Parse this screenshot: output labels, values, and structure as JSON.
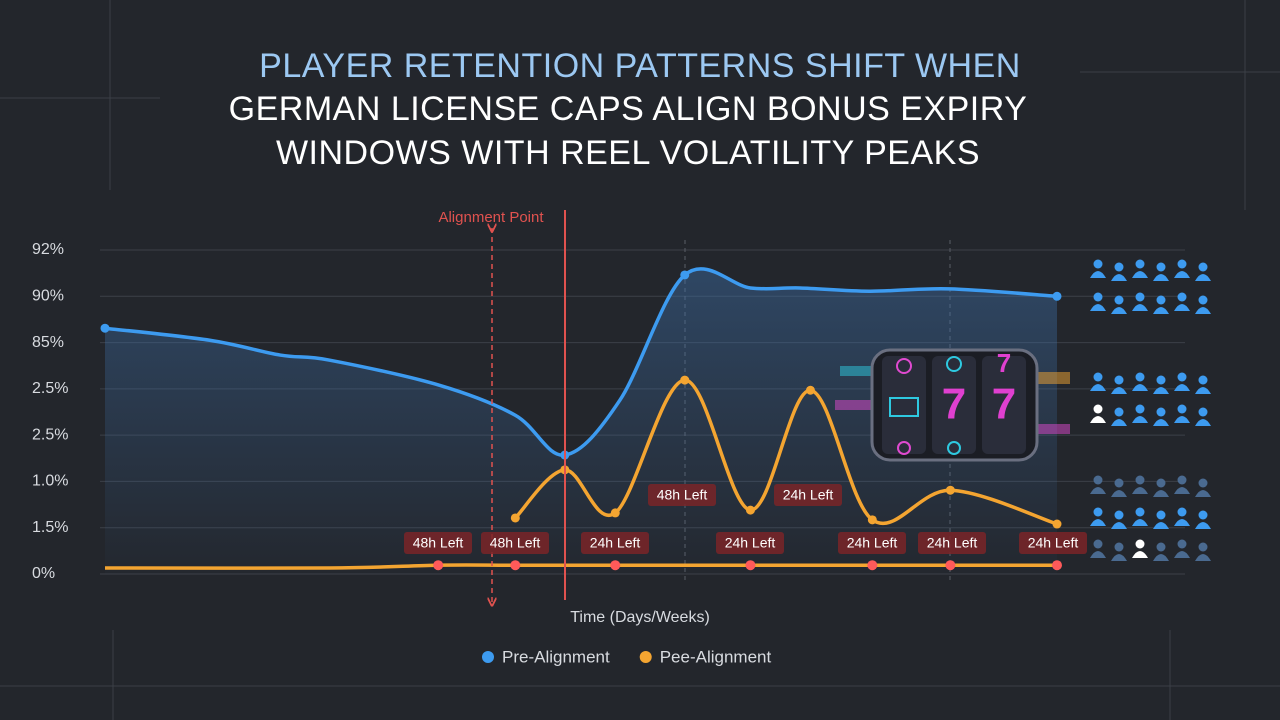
{
  "chart_data": {
    "type": "line",
    "title": [
      "PLAYER RETENTION PATTERNS SHIFT WHEN",
      "GERMAN LICENSE CAPS ALIGN BONUS EXPIRY",
      "WINDOWS WITH REEL VOLATILITY PEAKS"
    ],
    "x_label": "Time (Days/Weeks)",
    "xlim": [
      0,
      100
    ],
    "ylim": [
      0,
      7
    ],
    "yticks": [
      {
        "value": 0,
        "label": "0%"
      },
      {
        "value": 1,
        "label": "1.5%"
      },
      {
        "value": 2,
        "label": "1.0%"
      },
      {
        "value": 3,
        "label": "2.5%"
      },
      {
        "value": 4,
        "label": "2.5%"
      },
      {
        "value": 5,
        "label": "85%"
      },
      {
        "value": 6,
        "label": "90%"
      },
      {
        "value": 7,
        "label": "92%"
      }
    ],
    "grid": true,
    "series": [
      {
        "name": "Pre-Alignment",
        "color": "#3d9bf0",
        "x": [
          0,
          11,
          18.4,
          23.6,
          35.1,
          43.1,
          48.3,
          54.1,
          60.9,
          67.8,
          73,
          80.3,
          88.7,
          100
        ],
        "values": [
          5.31,
          5.05,
          4.73,
          4.62,
          4.08,
          3.43,
          2.57,
          3.76,
          6.46,
          6.18,
          6.18,
          6.11,
          6.16,
          6.0
        ]
      },
      {
        "name": "Pee-Alignment",
        "color": "#f4a531",
        "x": [
          43.1,
          48.3,
          53.6,
          60.9,
          67.8,
          74.1,
          80.6,
          88.8,
          100
        ],
        "values": [
          1.21,
          2.25,
          1.32,
          4.19,
          1.38,
          3.97,
          1.17,
          1.81,
          1.08
        ]
      },
      {
        "color": "#f4a531",
        "marker_color": "#ff5a5a",
        "x": [
          0,
          23.6,
          35,
          43.1,
          53.6,
          67.8,
          80.6,
          88.8,
          100
        ],
        "values": [
          0.13,
          0.13,
          0.19,
          0.19,
          0.19,
          0.19,
          0.19,
          0.19,
          0.19
        ]
      }
    ],
    "annotations": [
      "Alignment Point",
      "48h Left",
      "48h Left",
      "24h Left",
      "24h Left",
      "24h Left",
      "24h Left",
      "24h Left",
      "48h Left",
      "24h Left"
    ]
  }
}
